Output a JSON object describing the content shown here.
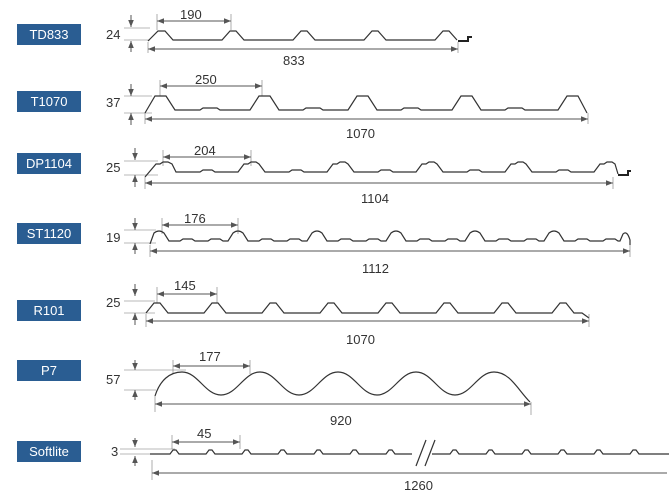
{
  "profiles": [
    {
      "code": "TD833",
      "height": "24",
      "pitch": "190",
      "width": "833"
    },
    {
      "code": "T1070",
      "height": "37",
      "pitch": "250",
      "width": "1070"
    },
    {
      "code": "DP1104",
      "height": "25",
      "pitch": "204",
      "width": "1104"
    },
    {
      "code": "ST1120",
      "height": "19",
      "pitch": "176",
      "width": "1112"
    },
    {
      "code": "R101",
      "height": "25",
      "pitch": "145",
      "width": "1070"
    },
    {
      "code": "P7",
      "height": "57",
      "pitch": "177",
      "width": "920"
    },
    {
      "code": "Softlite",
      "height": "3",
      "pitch": "45",
      "width": "1260"
    }
  ],
  "colors": {
    "badge": "#2a5d92",
    "line": "#333333",
    "dim": "#555555"
  }
}
